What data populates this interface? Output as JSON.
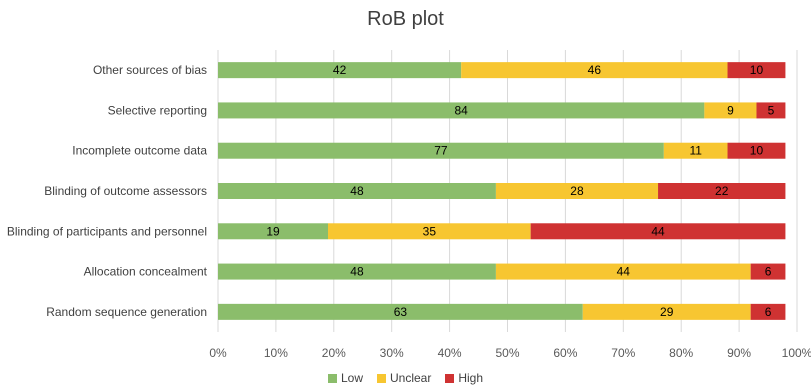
{
  "chart_data": {
    "type": "bar",
    "orientation": "horizontal",
    "stacked": "percent",
    "title": "RoB plot",
    "xlabel": "",
    "ylabel": "",
    "xlim": [
      0,
      100
    ],
    "x_ticks": [
      "0%",
      "10%",
      "20%",
      "30%",
      "40%",
      "50%",
      "60%",
      "70%",
      "80%",
      "90%",
      "100%"
    ],
    "grid": true,
    "legend_position": "bottom",
    "categories": [
      "Other sources of bias",
      "Selective reporting",
      "Incomplete outcome data",
      "Blinding of outcome assessors",
      "Blinding of participants and personnel",
      "Allocation concealment",
      "Random sequence generation"
    ],
    "series": [
      {
        "name": "Low",
        "color": "#8bbd6b",
        "values": [
          42,
          84,
          77,
          48,
          19,
          48,
          63
        ]
      },
      {
        "name": "Unclear",
        "color": "#f7c631",
        "values": [
          46,
          9,
          11,
          28,
          35,
          44,
          29
        ]
      },
      {
        "name": "High",
        "color": "#cf3232",
        "values": [
          10,
          5,
          10,
          22,
          44,
          6,
          6
        ]
      }
    ]
  }
}
